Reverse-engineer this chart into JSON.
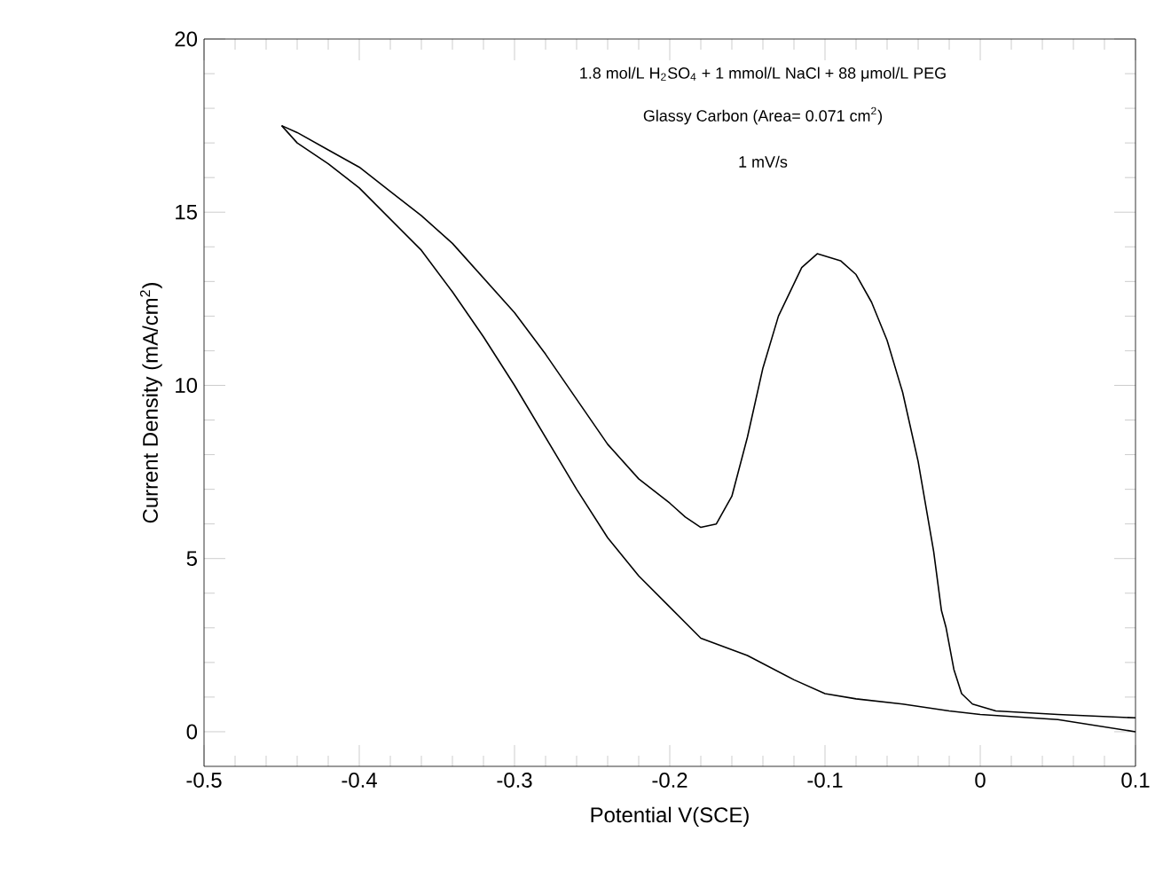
{
  "chart_data": {
    "type": "line",
    "xlabel": "Potential V(SCE)",
    "ylabel": "Current Density (mA/cm$^{2}$)",
    "annotations": [
      "1.8 mol/L H$_{2}$SO$_{4}$ + 1 mmol/L NaCl + 88 μmol/L PEG",
      "Glassy Carbon (Area= 0.071 cm$^{2}$)",
      "1 mV/s"
    ],
    "xlim": [
      -0.5,
      0.1
    ],
    "ylim": [
      -1,
      20
    ],
    "xticks": [
      -0.5,
      -0.4,
      -0.3,
      -0.2,
      -0.1,
      0,
      0.1
    ],
    "yticks": [
      0,
      5,
      10,
      15,
      20
    ],
    "grid": false,
    "marker": "none",
    "line_style": "solid",
    "series": [
      {
        "color": "#000000",
        "x": [
          -0.45,
          -0.44,
          -0.42,
          -0.4,
          -0.38,
          -0.36,
          -0.34,
          -0.32,
          -0.3,
          -0.28,
          -0.26,
          -0.24,
          -0.22,
          -0.2,
          -0.18,
          -0.15,
          -0.12,
          -0.1,
          -0.08,
          -0.05,
          -0.02,
          0.0,
          0.05,
          0.1
        ],
        "values": [
          17.5,
          17.0,
          16.4,
          15.7,
          14.8,
          13.9,
          12.7,
          11.4,
          10.0,
          8.5,
          7.0,
          5.6,
          4.5,
          3.6,
          2.7,
          2.2,
          1.5,
          1.1,
          0.95,
          0.8,
          0.6,
          0.5,
          0.35,
          0.0
        ]
      },
      {
        "color": "#000000",
        "x": [
          -0.45,
          -0.44,
          -0.42,
          -0.4,
          -0.38,
          -0.36,
          -0.34,
          -0.32,
          -0.3,
          -0.28,
          -0.26,
          -0.24,
          -0.22,
          -0.2,
          -0.19,
          -0.18,
          -0.17,
          -0.16,
          -0.15,
          -0.14,
          -0.13,
          -0.115,
          -0.105,
          -0.09,
          -0.08,
          -0.07,
          -0.06,
          -0.05,
          -0.04,
          -0.035,
          -0.03,
          -0.025,
          -0.022,
          -0.017,
          -0.012,
          -0.005,
          0.01,
          0.05,
          0.1
        ],
        "values": [
          17.5,
          17.3,
          16.8,
          16.3,
          15.6,
          14.9,
          14.1,
          13.1,
          12.1,
          10.9,
          9.6,
          8.3,
          7.3,
          6.6,
          6.2,
          5.9,
          6.0,
          6.8,
          8.5,
          10.5,
          12.0,
          13.4,
          13.8,
          13.6,
          13.2,
          12.4,
          11.3,
          9.8,
          7.8,
          6.5,
          5.2,
          3.5,
          3.0,
          1.8,
          1.1,
          0.8,
          0.6,
          0.5,
          0.4
        ]
      }
    ]
  }
}
